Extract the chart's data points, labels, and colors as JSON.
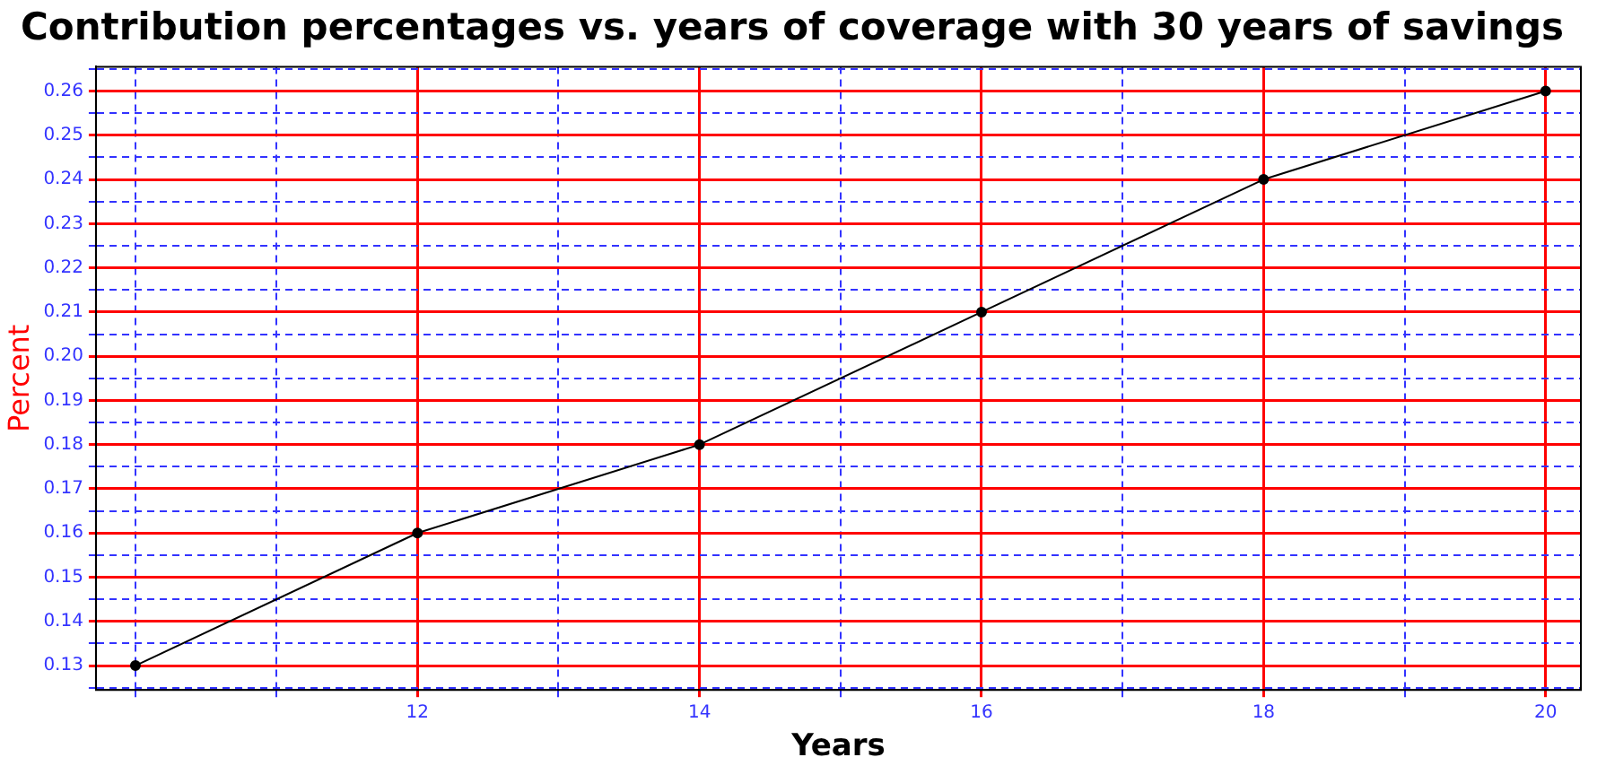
{
  "chart_data": {
    "type": "line",
    "title": "Contribution percentages vs. years of coverage with 30 years of savings",
    "xlabel": "Years",
    "ylabel": "Percent",
    "x": [
      10,
      12,
      14,
      16,
      18,
      20
    ],
    "series": [
      {
        "color": "#000000",
        "values": [
          0.13,
          0.16,
          0.18,
          0.21,
          0.24,
          0.26
        ]
      }
    ],
    "xlim": [
      9.72,
      20.25
    ],
    "xticks": [
      {
        "value": 10,
        "label": null
      },
      {
        "value": 11,
        "label": null
      },
      12,
      {
        "value": 13,
        "label": null
      },
      14,
      {
        "value": 15,
        "label": null
      },
      16,
      {
        "value": 17,
        "label": null
      },
      18,
      {
        "value": 19,
        "label": null
      },
      20
    ],
    "ylim": [
      0.1245,
      0.2655
    ],
    "yticks": [
      {
        "value": 0.125,
        "label": null
      },
      {
        "value": 0.13,
        "label": "0.13"
      },
      {
        "value": 0.135,
        "label": null
      },
      {
        "value": 0.14,
        "label": "0.14"
      },
      {
        "value": 0.145,
        "label": null
      },
      {
        "value": 0.15,
        "label": "0.15"
      },
      {
        "value": 0.155,
        "label": null
      },
      {
        "value": 0.16,
        "label": "0.16"
      },
      {
        "value": 0.165,
        "label": null
      },
      {
        "value": 0.17,
        "label": "0.17"
      },
      {
        "value": 0.175,
        "label": null
      },
      {
        "value": 0.18,
        "label": "0.18"
      },
      {
        "value": 0.185,
        "label": null
      },
      {
        "value": 0.19,
        "label": "0.19"
      },
      {
        "value": 0.195,
        "label": null
      },
      {
        "value": 0.2,
        "label": "0.20"
      },
      {
        "value": 0.205,
        "label": null
      },
      {
        "value": 0.21,
        "label": "0.21"
      },
      {
        "value": 0.215,
        "label": null
      },
      {
        "value": 0.22,
        "label": "0.22"
      },
      {
        "value": 0.225,
        "label": null
      },
      {
        "value": 0.23,
        "label": "0.23"
      },
      {
        "value": 0.235,
        "label": null
      },
      {
        "value": 0.24,
        "label": "0.24"
      },
      {
        "value": 0.245,
        "label": null
      },
      {
        "value": 0.25,
        "label": "0.25"
      },
      {
        "value": 0.255,
        "label": null
      },
      {
        "value": 0.26,
        "label": "0.26"
      },
      {
        "value": 0.265,
        "label": null
      }
    ],
    "grid": true,
    "legend": false,
    "marker": "circle",
    "line_style": "solid"
  }
}
